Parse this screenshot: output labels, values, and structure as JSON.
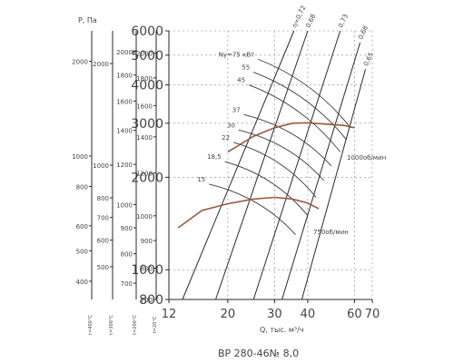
{
  "chart_data": {
    "type": "line",
    "title": "ВР 280-46№ 8,0",
    "xlabel": "Q, тыс. м³/ч",
    "ylabel": "P, Па",
    "x_scale": "log",
    "y_scale": "log",
    "xlim": [
      12,
      70
    ],
    "ylim": [
      800,
      6000
    ],
    "x_ticks": [
      "12",
      "20",
      "30",
      "40",
      "60",
      "70"
    ],
    "y_ticks": [
      "800",
      "1000",
      "2000",
      "3000",
      "4000",
      "5000",
      "6000"
    ],
    "left_scales": [
      {
        "name": "t=400°C",
        "ticks": [
          "400",
          "500",
          "600",
          "800",
          "1000",
          "2000"
        ]
      },
      {
        "name": "t=300°C",
        "ticks": [
          "500",
          "600",
          "700",
          "800",
          "1000",
          "2000"
        ]
      },
      {
        "name": "t=200°C",
        "ticks": [
          "700",
          "800",
          "900",
          "1000",
          "1200",
          "1400",
          "1600",
          "1800",
          "2000"
        ]
      },
      {
        "name": "t=20°C",
        "ticks": [
          "700",
          "800",
          "900",
          "1000",
          "1200",
          "1400",
          "1600",
          "1800",
          "2000"
        ]
      }
    ],
    "efficiency_lines": [
      {
        "label": "η=0,72",
        "points": [
          [
            13.5,
            800
          ],
          [
            35.5,
            6000
          ]
        ]
      },
      {
        "label": "0,68",
        "points": [
          [
            18,
            800
          ],
          [
            40,
            6000
          ]
        ]
      },
      {
        "label": "0,73",
        "points": [
          [
            25,
            800
          ],
          [
            53,
            6000
          ]
        ]
      },
      {
        "label": "0,68",
        "points": [
          [
            32,
            800
          ],
          [
            63,
            5500
          ]
        ]
      },
      {
        "label": "0,65",
        "points": [
          [
            38,
            800
          ],
          [
            66,
            4500
          ]
        ]
      }
    ],
    "power_lines": [
      {
        "label": "Nу=75 кВт",
        "points": [
          [
            26,
            4850
          ],
          [
            58,
            2900
          ]
        ]
      },
      {
        "label": "55",
        "points": [
          [
            25,
            4400
          ],
          [
            56,
            2650
          ]
        ]
      },
      {
        "label": "45",
        "points": [
          [
            24,
            4000
          ],
          [
            53,
            2420
          ]
        ]
      },
      {
        "label": "37",
        "points": [
          [
            23,
            3200
          ],
          [
            49,
            2180
          ]
        ]
      },
      {
        "label": "30",
        "points": [
          [
            22,
            2850
          ],
          [
            46,
            1950
          ]
        ]
      },
      {
        "label": "22",
        "points": [
          [
            21,
            2600
          ],
          [
            43,
            1720
          ]
        ]
      },
      {
        "label": "18,5",
        "points": [
          [
            19.5,
            2250
          ],
          [
            40,
            1500
          ]
        ]
      },
      {
        "label": "15",
        "points": [
          [
            17,
            1900
          ],
          [
            36,
            1300
          ]
        ]
      }
    ],
    "series": [
      {
        "name": "1000об/мин",
        "points": [
          [
            20,
            2420
          ],
          [
            25,
            2720
          ],
          [
            30,
            2900
          ],
          [
            35,
            3000
          ],
          [
            40,
            3010
          ],
          [
            47,
            2980
          ],
          [
            55,
            2950
          ],
          [
            60,
            2900
          ]
        ]
      },
      {
        "name": "750об/мин",
        "points": [
          [
            13,
            1370
          ],
          [
            16,
            1560
          ],
          [
            20,
            1640
          ],
          [
            25,
            1700
          ],
          [
            30,
            1720
          ],
          [
            35,
            1700
          ],
          [
            40,
            1650
          ],
          [
            44,
            1580
          ]
        ]
      }
    ],
    "grid": true
  }
}
